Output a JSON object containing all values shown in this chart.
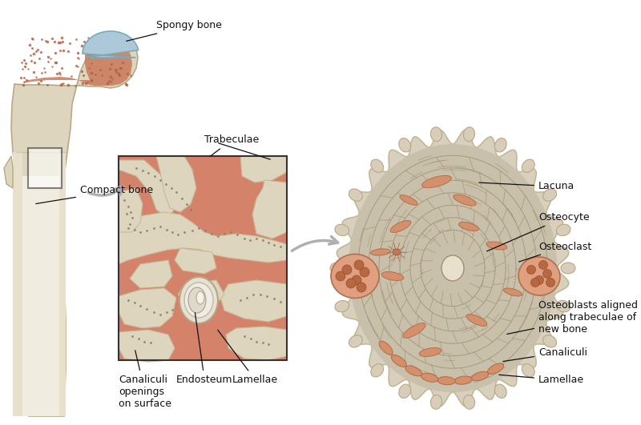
{
  "background_color": "#ffffff",
  "labels": {
    "spongy_bone": "Spongy bone",
    "compact_bone": "Compact bone",
    "trabeculae": "Trabeculae",
    "canaliculi_openings": "Canaliculi\nopenings\non surface",
    "endosteum": "Endosteum",
    "lamellae_left": "Lamellae",
    "lacuna": "Lacuna",
    "osteocyte": "Osteocyte",
    "osteoclast": "Osteoclast",
    "osteoblasts": "Osteoblasts aligned\nalong trabeculae of\nnew bone",
    "canaliculi_right": "Canaliculi",
    "lamellae_right": "Lamellae"
  },
  "colors": {
    "bone_outer": "#ddd5be",
    "bone_cream": "#e8e0cc",
    "spongy_fill": "#c97a5a",
    "cartilage": "#adc8d8",
    "trabecula": "#ddd5be",
    "marrow": "#d4826a",
    "arrow_gray": "#b0b0b0",
    "text_color": "#1a1a1a",
    "osteon_body": "#c8c0aa",
    "osteon_ring": "#b8b0a0",
    "osteon_edge": "#d8d0bc",
    "cell_salmon": "#d4856a",
    "cell_dark": "#c07050",
    "osteoblast_cell": "#d4906a"
  }
}
